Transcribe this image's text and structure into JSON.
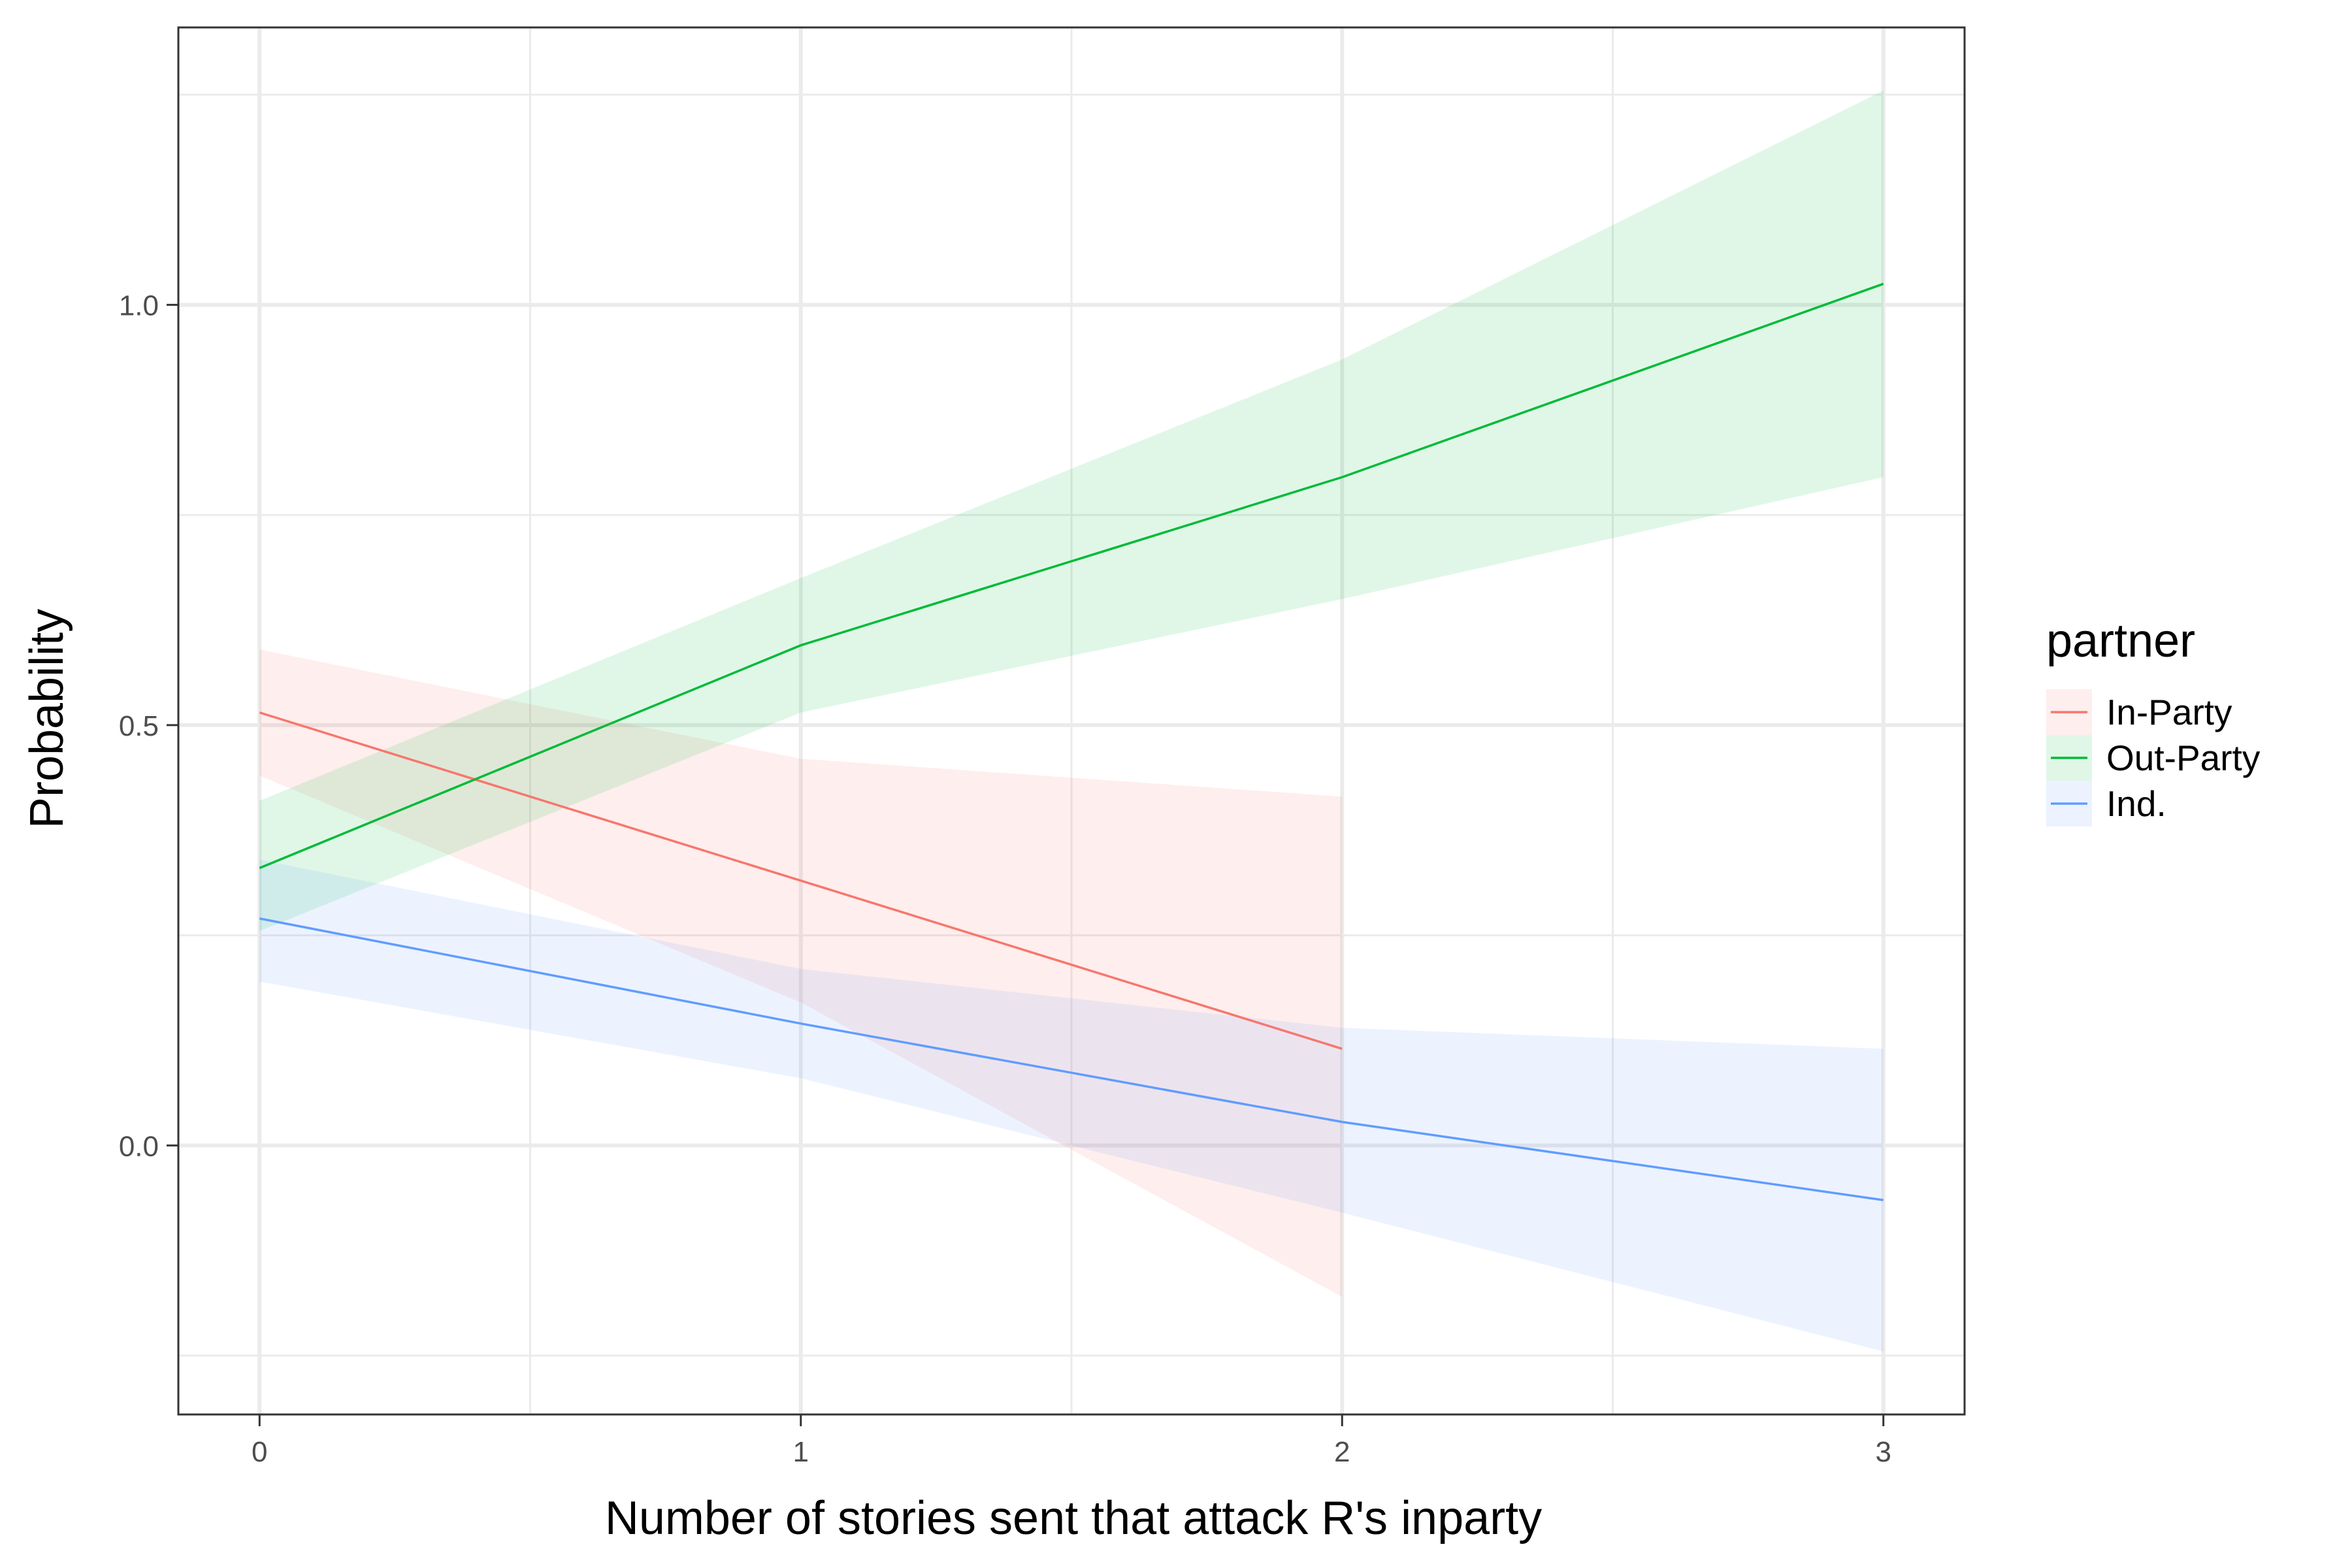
{
  "chart_data": {
    "type": "line",
    "xlabel": "Number of stories sent that attack R's inparty",
    "ylabel": "Probability",
    "xlim": [
      -0.15,
      3.15
    ],
    "ylim": [
      -0.32,
      1.33
    ],
    "x_ticks": [
      0,
      1,
      2,
      3
    ],
    "x_tick_labels": [
      "0",
      "1",
      "2",
      "3"
    ],
    "y_ticks": [
      0.0,
      0.5,
      1.0
    ],
    "y_tick_labels": [
      "0.0",
      "0.5",
      "1.0"
    ],
    "y_minor_ticks": [
      -0.25,
      0.25,
      0.75,
      1.25
    ],
    "x_minor_ticks": [
      0.5,
      1.5,
      2.5
    ],
    "grid": true,
    "legend": {
      "title": "partner",
      "position": "right"
    },
    "series": [
      {
        "name": "In-Party",
        "color": "#F8766D",
        "x": [
          0,
          1,
          2
        ],
        "y": [
          0.515,
          0.315,
          0.115
        ],
        "lower": [
          0.44,
          0.17,
          -0.18
        ],
        "upper": [
          0.59,
          0.46,
          0.415
        ]
      },
      {
        "name": "Out-Party",
        "color": "#00BA38",
        "x": [
          0,
          1,
          2,
          3
        ],
        "y": [
          0.33,
          0.595,
          0.795,
          1.025
        ],
        "lower": [
          0.255,
          0.515,
          0.65,
          0.795
        ],
        "upper": [
          0.41,
          0.675,
          0.935,
          1.255
        ]
      },
      {
        "name": "Ind.",
        "color": "#619CFF",
        "x": [
          0,
          1,
          2,
          3
        ],
        "y": [
          0.27,
          0.145,
          0.028,
          -0.065
        ],
        "lower": [
          0.195,
          0.08,
          -0.08,
          -0.245
        ],
        "upper": [
          0.34,
          0.21,
          0.14,
          0.115
        ]
      }
    ]
  }
}
